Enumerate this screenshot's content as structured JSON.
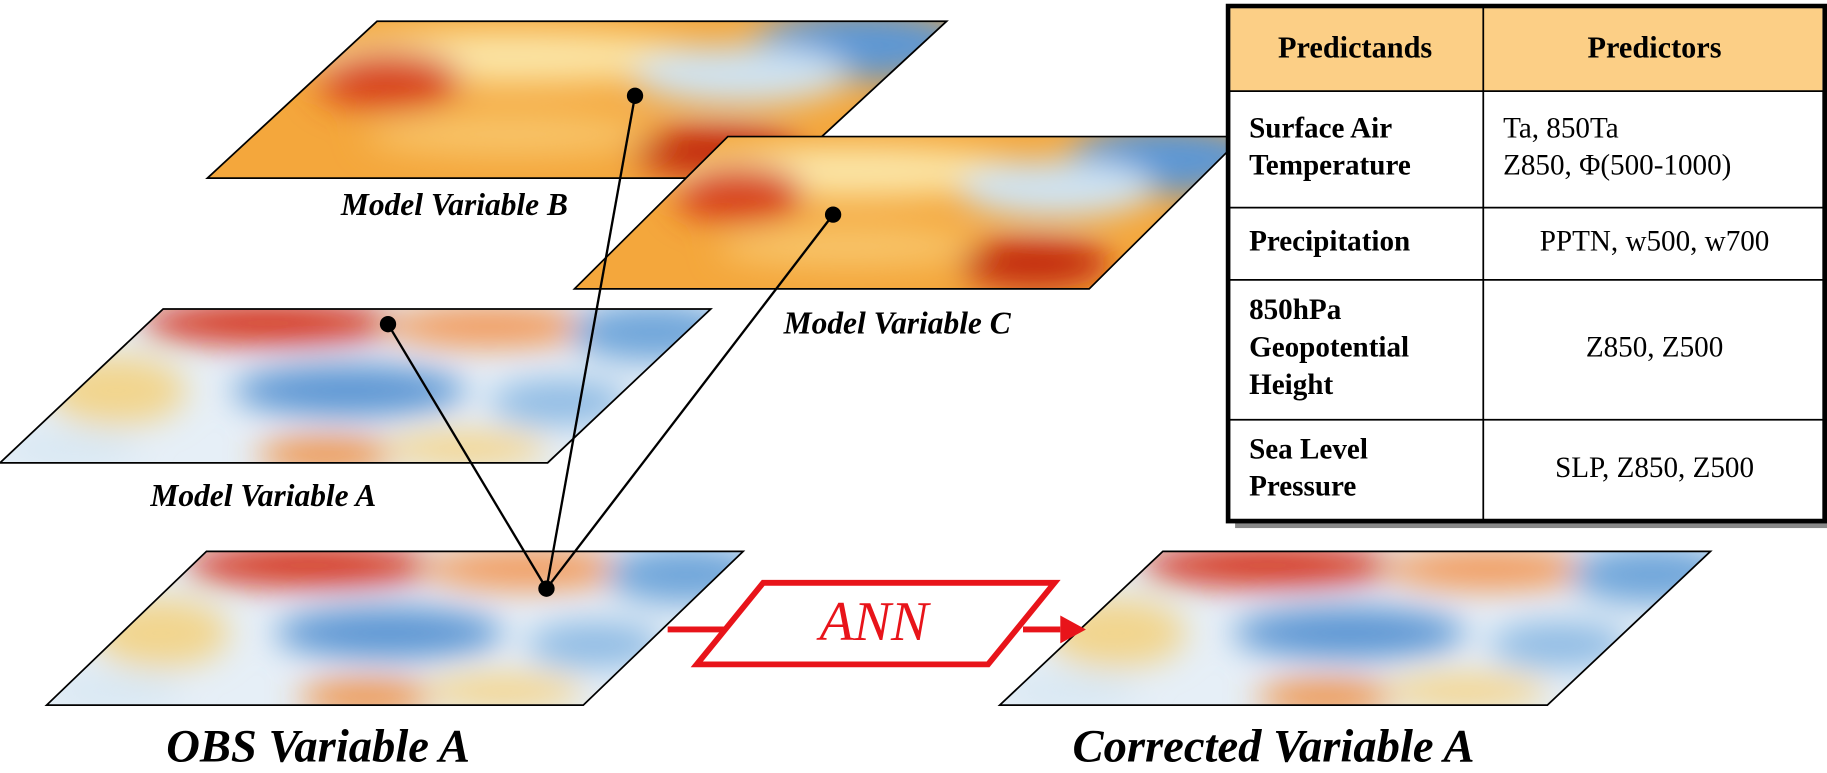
{
  "labels": {
    "model_b": "Model Variable B",
    "model_c": "Model Variable C",
    "model_a": "Model Variable A",
    "obs": "OBS Variable A",
    "corrected": "Corrected Variable A",
    "ann": "ANN"
  },
  "table": {
    "header": [
      "Predictands",
      "Predictors"
    ],
    "rows": [
      [
        [
          "Surface Air",
          "Temperature"
        ],
        [
          "Ta, 850Ta",
          "Z850, Φ(500-1000)"
        ]
      ],
      [
        [
          "Precipitation"
        ],
        [
          "PPTN, w500, w700"
        ]
      ],
      [
        [
          "850hPa",
          "Geopotential",
          "Height"
        ],
        [
          "Z850, Z500"
        ]
      ],
      [
        [
          "Sea Level",
          "Pressure"
        ],
        [
          "SLP, Z850, Z500"
        ]
      ]
    ]
  }
}
